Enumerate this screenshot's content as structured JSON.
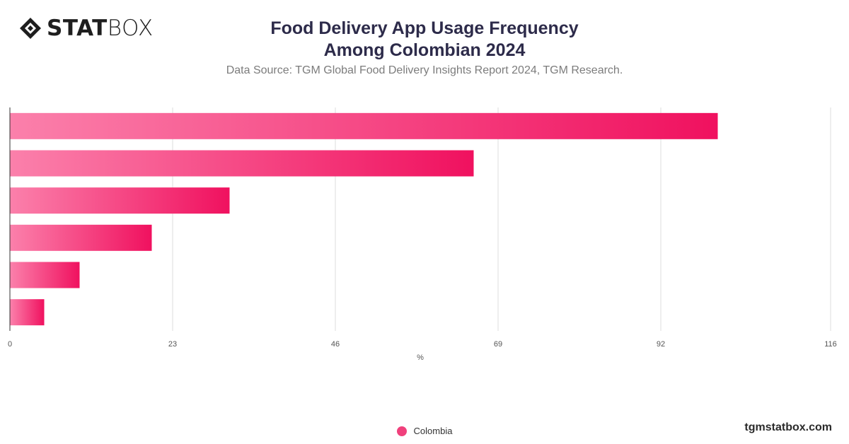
{
  "brand": {
    "logo_bold": "STAT",
    "logo_light": "BOX",
    "website": "tgmstatbox.com"
  },
  "header": {
    "title_line1": "Food Delivery App Usage Frequency",
    "title_line2": "Among Colombian 2024",
    "subtitle": "Data Source: TGM Global Food Delivery Insights Report 2024, TGM Research."
  },
  "colors": {
    "bar_start": "#fb80ab",
    "bar_end": "#f0115f",
    "grid": "#dddddd",
    "axis": "#333333"
  },
  "chart_data": {
    "type": "bar",
    "orientation": "horizontal",
    "categories": [
      "",
      "",
      "",
      "",
      "",
      ""
    ],
    "series": [
      {
        "name": "Colombia",
        "values": [
          100,
          65.5,
          31,
          20,
          9.8,
          4.8
        ]
      }
    ],
    "xlabel": "%",
    "xlim": [
      0,
      116
    ],
    "xticks": [
      0,
      23,
      46,
      69,
      92,
      116
    ],
    "grid": true,
    "legend_position": "bottom-center"
  }
}
